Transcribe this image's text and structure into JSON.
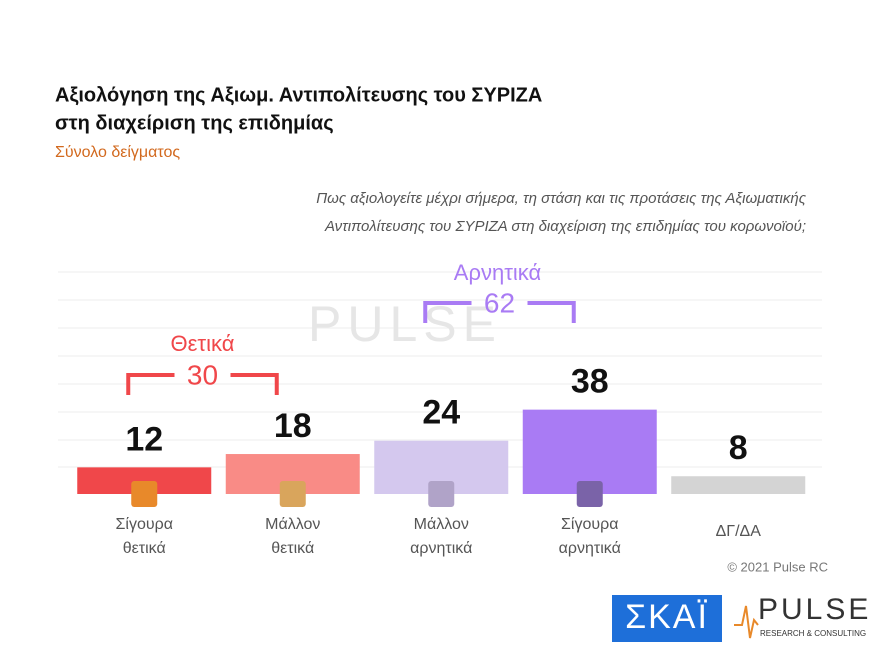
{
  "chart_data": {
    "type": "bar",
    "title": [
      "Αξιολόγηση της Αξιωμ. Αντιπολίτευσης του ΣΥΡΙΖΑ",
      "στη διαχείριση της επιδημίας"
    ],
    "subtitle": "Σύνολο δείγματος",
    "question": [
      "Πως αξιολογείτε  μέχρι σήμερα, τη στάση και τις προτάσεις της Αξιωματικής",
      "Αντιπολίτευσης του ΣΥΡΙΖΑ στη διαχείριση της επιδημίας του κορωνοϊού;"
    ],
    "categories": [
      [
        "Σίγουρα",
        "θετικά"
      ],
      [
        "Μάλλον",
        "θετικά"
      ],
      [
        "Μάλλον",
        "αρνητικά"
      ],
      [
        "Σίγουρα",
        "αρνητικά"
      ],
      [
        "ΔΓ/ΔΑ"
      ]
    ],
    "values": [
      12,
      18,
      24,
      38,
      8
    ],
    "colors": [
      "#f0474a",
      "#f98b86",
      "#d4c8ee",
      "#a97bf4",
      "#d4d4d4"
    ],
    "ylim": [
      0,
      100
    ],
    "groups": [
      {
        "label": "Θετικά",
        "value": 30,
        "color": "#f0474a"
      },
      {
        "label": "Αρνητικά",
        "value": 62,
        "color": "#a97bf4"
      }
    ],
    "copyright": "© 2021 Pulse RC",
    "logos": {
      "skai": "ΣΚΑΪ",
      "pulse": "PULSE",
      "pulse_sub": "RESEARCH & CONSULTING"
    }
  }
}
